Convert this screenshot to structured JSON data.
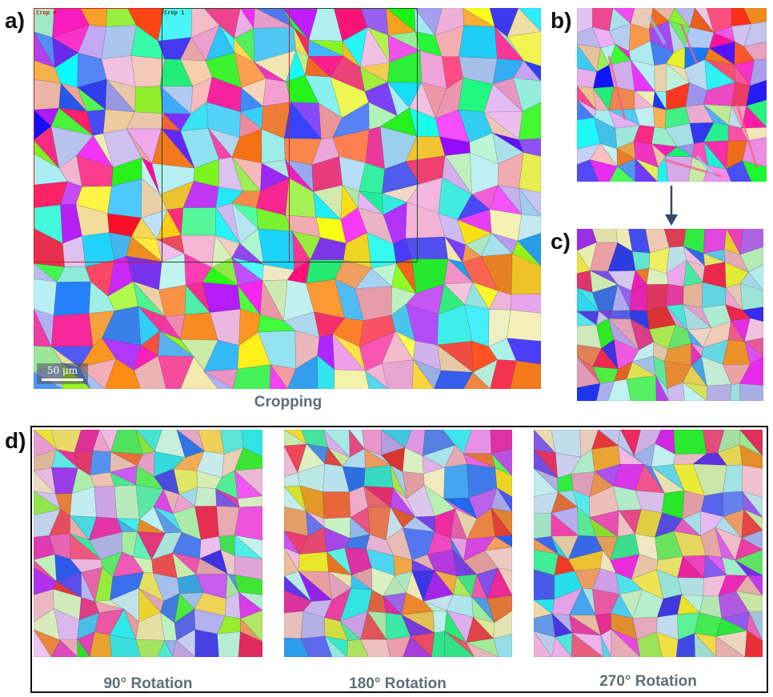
{
  "panels": {
    "a": {
      "label": "a)",
      "caption": "Cropping",
      "crop_labels": [
        "Crop 0",
        "Crop 1"
      ],
      "crop_colors": [
        "#cc1f1f",
        "#1f4a2a"
      ],
      "scale_bar": "50 μm"
    },
    "b": {
      "label": "b)"
    },
    "c": {
      "label": "c)"
    },
    "d": {
      "label": "d)",
      "captions": [
        "90° Rotation",
        "180° Rotation",
        "270° Rotation"
      ]
    }
  },
  "colors": {
    "caption": "#5f6e78",
    "arrow": "#2f4a6a",
    "frame": "#111111"
  }
}
